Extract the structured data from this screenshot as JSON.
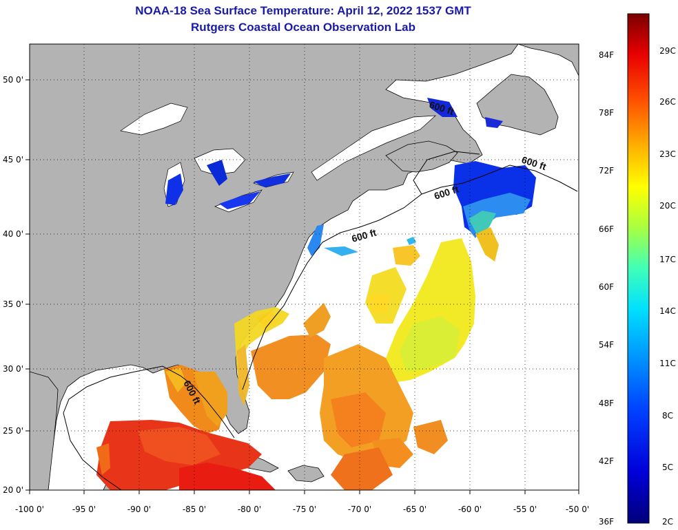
{
  "title_line1": "NOAA-18 Sea Surface Temperature:  April 12, 2022 1537 GMT",
  "title_line2": "Rutgers Coastal Ocean Observation Lab",
  "map": {
    "lon_ticks": [
      "-100 0'",
      "-95 0'",
      "-90 0'",
      "-85 0'",
      "-80 0'",
      "-75 0'",
      "-70 0'",
      "-65 0'",
      "-60 0'",
      "-55 0'",
      "-50 0'"
    ],
    "lat_ticks": [
      "50 0'",
      "45 0'",
      "40 0'",
      "35 0'",
      "30 0'",
      "25 0'",
      "20 0'"
    ],
    "lon_range": [
      -100,
      -50
    ],
    "lat_range": [
      20,
      52.5
    ],
    "land_color": "#b3b3b3",
    "no_data_color": "#ffffff",
    "contour_label": "600 ft",
    "contour_labels": [
      "600 ft",
      "600 ft",
      "600 ft",
      "600 ft",
      "600 ft"
    ]
  },
  "colorbar": {
    "fahrenheit_labels": [
      "84F",
      "78F",
      "72F",
      "66F",
      "60F",
      "54F",
      "48F",
      "42F",
      "36F"
    ],
    "celsius_labels": [
      "29C",
      "26C",
      "23C",
      "20C",
      "17C",
      "14C",
      "11C",
      "8C",
      "5C",
      "2C"
    ],
    "range_c": [
      2,
      31
    ]
  }
}
